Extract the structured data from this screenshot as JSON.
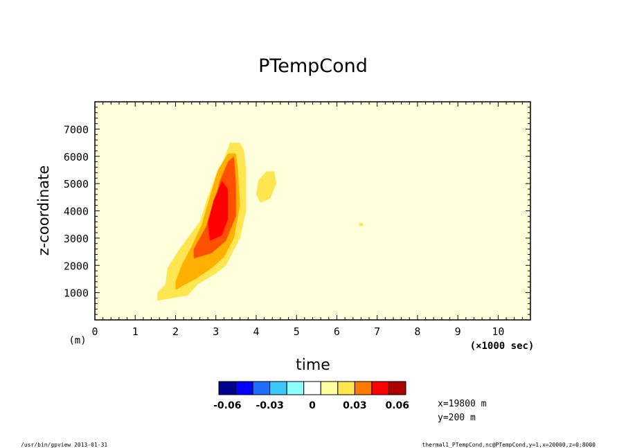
{
  "chart_data": {
    "type": "heatmap",
    "title": "PTempCond",
    "xlabel": "time",
    "x_unit": "(×1000 sec)",
    "ylabel": "z-coordinate",
    "y_unit": "(m)",
    "xlim": [
      0,
      10.8
    ],
    "ylim": [
      0,
      8000
    ],
    "x_ticks": [
      0,
      1,
      2,
      3,
      4,
      5,
      6,
      7,
      8,
      9,
      10
    ],
    "y_ticks": [
      1000,
      2000,
      3000,
      4000,
      5000,
      6000,
      7000
    ],
    "background_level": "0 to 0.015",
    "colorbar": {
      "colors": [
        "#00008b",
        "#0000ff",
        "#1e6eff",
        "#3cc8ff",
        "#8cffff",
        "#ffffff",
        "#ffffa0",
        "#ffe650",
        "#ff7800",
        "#ff0000",
        "#aa0000"
      ],
      "tick_labels": [
        "-0.06",
        "-0.03",
        "0",
        "0.03",
        "0.06"
      ],
      "tick_values": [
        -0.06,
        -0.03,
        0,
        0.03,
        0.06
      ]
    },
    "contours": [
      {
        "level": "0.015 to 0.03",
        "color": "#ffe650",
        "polygon": [
          [
            1.55,
            700
          ],
          [
            2.3,
            900
          ],
          [
            2.55,
            1300
          ],
          [
            3.0,
            1700
          ],
          [
            3.25,
            2000
          ],
          [
            3.6,
            3000
          ],
          [
            3.75,
            4000
          ],
          [
            3.75,
            5500
          ],
          [
            3.7,
            6200
          ],
          [
            3.6,
            6500
          ],
          [
            3.35,
            6500
          ],
          [
            3.2,
            5900
          ],
          [
            3.0,
            5300
          ],
          [
            2.8,
            4500
          ],
          [
            2.6,
            3600
          ],
          [
            2.1,
            2600
          ],
          [
            1.8,
            1900
          ],
          [
            1.75,
            1300
          ],
          [
            1.55,
            1000
          ]
        ]
      },
      {
        "level": "0.03 to 0.045",
        "color": "#ffb000",
        "polygon": [
          [
            2.0,
            1100
          ],
          [
            2.5,
            1500
          ],
          [
            2.9,
            1900
          ],
          [
            3.2,
            2300
          ],
          [
            3.45,
            3000
          ],
          [
            3.6,
            4200
          ],
          [
            3.55,
            5500
          ],
          [
            3.5,
            6100
          ],
          [
            3.3,
            6100
          ],
          [
            3.05,
            5500
          ],
          [
            2.85,
            4500
          ],
          [
            2.65,
            3500
          ],
          [
            2.4,
            2700
          ],
          [
            2.15,
            2000
          ],
          [
            2.0,
            1400
          ]
        ]
      },
      {
        "level": "0.045 to 0.06",
        "color": "#ff5000",
        "polygon": [
          [
            2.45,
            2250
          ],
          [
            2.9,
            2450
          ],
          [
            3.25,
            2900
          ],
          [
            3.5,
            3800
          ],
          [
            3.5,
            5000
          ],
          [
            3.45,
            6000
          ],
          [
            3.3,
            5800
          ],
          [
            3.1,
            5100
          ],
          [
            2.95,
            4200
          ],
          [
            2.75,
            3400
          ],
          [
            2.45,
            2600
          ]
        ]
      },
      {
        "level": "> 0.06",
        "color": "#ff0000",
        "polygon": [
          [
            2.85,
            2900
          ],
          [
            3.15,
            3100
          ],
          [
            3.3,
            3700
          ],
          [
            3.3,
            4800
          ],
          [
            3.15,
            5100
          ],
          [
            2.95,
            4400
          ],
          [
            2.8,
            3600
          ]
        ]
      },
      {
        "level": "0.015 to 0.03",
        "color": "#ffe650",
        "polygon": [
          [
            4.1,
            4300
          ],
          [
            4.35,
            4450
          ],
          [
            4.5,
            5000
          ],
          [
            4.45,
            5450
          ],
          [
            4.25,
            5450
          ],
          [
            4.05,
            5100
          ],
          [
            4.0,
            4600
          ]
        ]
      },
      {
        "level": "0.015 to 0.03",
        "color": "#ffe650",
        "polygon": [
          [
            6.55,
            3450
          ],
          [
            6.65,
            3450
          ],
          [
            6.65,
            3550
          ],
          [
            6.55,
            3550
          ]
        ]
      }
    ]
  },
  "annotations": {
    "x_pos": "x=19800 m",
    "y_pos": "y=200 m"
  },
  "footer": {
    "left": "/usr/bin/gpview  2013-01-31",
    "right": "thermal1_PTempCond.nc@PTempCond,y=1,x=20000,z=0:8000"
  }
}
